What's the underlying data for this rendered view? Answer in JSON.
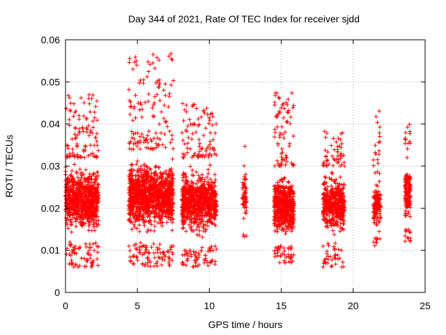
{
  "chart_data": {
    "type": "scatter",
    "title": "Day 344 of 2021, Rate Of TEC Index for receiver sjdd",
    "xlabel": "GPS time / hours",
    "ylabel": "ROTI / TECUs",
    "xlim": [
      0,
      25
    ],
    "ylim": [
      0,
      0.06
    ],
    "x_ticks": [
      0,
      5,
      10,
      15,
      20,
      25
    ],
    "x_tick_labels": [
      "0",
      "5",
      "10",
      "15",
      "20",
      "25"
    ],
    "y_ticks": [
      0,
      0.01,
      0.02,
      0.03,
      0.04,
      0.05,
      0.06
    ],
    "y_tick_labels": [
      "0",
      "0.01",
      "0.02",
      "0.03",
      "0.04",
      "0.05",
      "0.06"
    ],
    "grid": true,
    "marker": "+",
    "color": "#ff0000",
    "clusters": [
      {
        "x_start": 0.0,
        "x_end": 2.3,
        "y_min": 0.006,
        "y_max": 0.047,
        "core_min": 0.012,
        "core_max": 0.032,
        "count": 900
      },
      {
        "x_start": 4.4,
        "x_end": 7.5,
        "y_min": 0.006,
        "y_max": 0.057,
        "core_min": 0.012,
        "core_max": 0.034,
        "count": 1300
      },
      {
        "x_start": 8.1,
        "x_end": 10.5,
        "y_min": 0.006,
        "y_max": 0.045,
        "core_min": 0.011,
        "core_max": 0.032,
        "count": 900
      },
      {
        "x_start": 12.3,
        "x_end": 12.6,
        "y_min": 0.013,
        "y_max": 0.037,
        "core_min": 0.015,
        "core_max": 0.03,
        "count": 60
      },
      {
        "x_start": 14.5,
        "x_end": 15.9,
        "y_min": 0.007,
        "y_max": 0.048,
        "core_min": 0.011,
        "core_max": 0.03,
        "count": 600
      },
      {
        "x_start": 17.9,
        "x_end": 19.4,
        "y_min": 0.006,
        "y_max": 0.039,
        "core_min": 0.012,
        "core_max": 0.03,
        "count": 500
      },
      {
        "x_start": 21.4,
        "x_end": 21.9,
        "y_min": 0.011,
        "y_max": 0.044,
        "core_min": 0.013,
        "core_max": 0.028,
        "count": 150
      },
      {
        "x_start": 23.6,
        "x_end": 24.0,
        "y_min": 0.012,
        "y_max": 0.04,
        "core_min": 0.015,
        "core_max": 0.032,
        "count": 150
      }
    ]
  }
}
